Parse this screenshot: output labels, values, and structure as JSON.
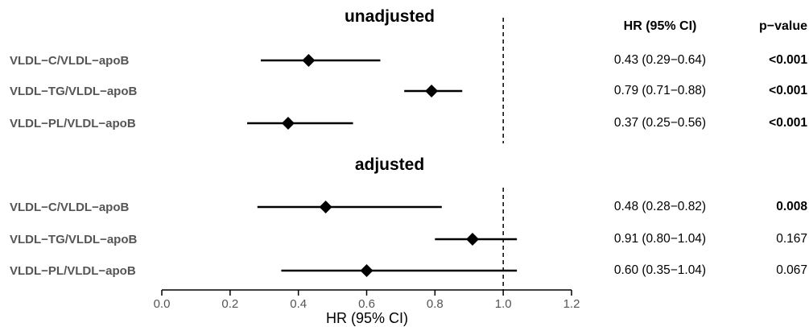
{
  "chart_data": {
    "type": "forest",
    "xlabel": "HR (95% CI)",
    "xlim": [
      0.0,
      1.2
    ],
    "xticks": [
      "0.0",
      "0.2",
      "0.4",
      "0.6",
      "0.8",
      "1.0",
      "1.2"
    ],
    "reference_line": 1.0,
    "header_hr": "HR (95% CI)",
    "header_p": "p−value",
    "panels": [
      {
        "title": "unadjusted",
        "rows": [
          {
            "label": "VLDL−C/VLDL−apoB",
            "hr": 0.43,
            "lower": 0.29,
            "upper": 0.64,
            "hr_text": "0.43 (0.29−0.64)",
            "p_text": "<0.001",
            "p_bold": true
          },
          {
            "label": "VLDL−TG/VLDL−apoB",
            "hr": 0.79,
            "lower": 0.71,
            "upper": 0.88,
            "hr_text": "0.79 (0.71−0.88)",
            "p_text": "<0.001",
            "p_bold": true
          },
          {
            "label": "VLDL−PL/VLDL−apoB",
            "hr": 0.37,
            "lower": 0.25,
            "upper": 0.56,
            "hr_text": "0.37 (0.25−0.56)",
            "p_text": "<0.001",
            "p_bold": true
          }
        ]
      },
      {
        "title": "adjusted",
        "rows": [
          {
            "label": "VLDL−C/VLDL−apoB",
            "hr": 0.48,
            "lower": 0.28,
            "upper": 0.82,
            "hr_text": "0.48 (0.28−0.82)",
            "p_text": "0.008",
            "p_bold": true
          },
          {
            "label": "VLDL−TG/VLDL−apoB",
            "hr": 0.91,
            "lower": 0.8,
            "upper": 1.04,
            "hr_text": "0.91 (0.80−1.04)",
            "p_text": "0.167",
            "p_bold": false
          },
          {
            "label": "VLDL−PL/VLDL−apoB",
            "hr": 0.6,
            "lower": 0.35,
            "upper": 1.04,
            "hr_text": "0.60 (0.35−1.04)",
            "p_text": "0.067",
            "p_bold": false
          }
        ]
      }
    ]
  }
}
